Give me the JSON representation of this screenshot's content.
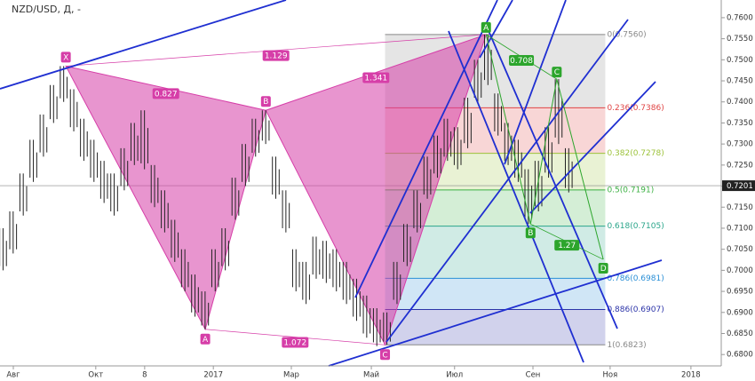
{
  "chart_data": {
    "type": "ohlc",
    "title": "NZD/USD, Д, -",
    "x": [
      -0.25,
      0,
      0.25,
      0.5,
      0.75,
      1,
      1.25,
      1.5,
      1.75,
      2,
      2.25,
      2.5,
      2.75,
      3,
      3.25,
      3.5,
      3.75,
      4,
      4.25,
      4.5,
      4.75,
      5,
      5.25,
      5.5,
      5.75,
      6,
      6.25,
      6.5,
      6.75,
      7,
      7.25,
      7.5,
      7.75,
      8,
      8.25,
      8.5,
      8.75,
      9,
      9.25,
      9.5,
      9.75,
      10,
      10.25,
      10.5,
      10.75,
      11,
      11.25,
      11.5,
      11.75,
      12,
      12.25,
      12.5,
      12.75,
      13,
      13.25,
      13.5,
      13.75
    ],
    "high": [
      0.71,
      0.714,
      0.723,
      0.731,
      0.737,
      0.744,
      0.7485,
      0.743,
      0.736,
      0.731,
      0.726,
      0.723,
      0.729,
      0.735,
      0.738,
      0.725,
      0.719,
      0.712,
      0.705,
      0.699,
      0.695,
      0.705,
      0.71,
      0.722,
      0.73,
      0.736,
      0.738,
      0.727,
      0.719,
      0.705,
      0.702,
      0.708,
      0.707,
      0.705,
      0.702,
      0.698,
      0.694,
      0.691,
      0.69,
      0.702,
      0.711,
      0.719,
      0.727,
      0.732,
      0.736,
      0.734,
      0.741,
      0.75,
      0.756,
      0.742,
      0.735,
      0.731,
      0.724,
      0.726,
      0.734,
      0.7454,
      0.729
    ],
    "low": [
      0.7,
      0.704,
      0.713,
      0.721,
      0.727,
      0.735,
      0.74,
      0.733,
      0.726,
      0.721,
      0.716,
      0.713,
      0.719,
      0.725,
      0.724,
      0.715,
      0.709,
      0.702,
      0.695,
      0.689,
      0.686,
      0.695,
      0.7,
      0.712,
      0.72,
      0.727,
      0.73,
      0.717,
      0.709,
      0.695,
      0.692,
      0.698,
      0.697,
      0.695,
      0.692,
      0.688,
      0.684,
      0.682,
      0.6823,
      0.692,
      0.701,
      0.709,
      0.717,
      0.722,
      0.726,
      0.724,
      0.729,
      0.74,
      0.744,
      0.732,
      0.725,
      0.721,
      0.711,
      0.714,
      0.722,
      0.73,
      0.7185
    ],
    "xlim": [
      -0.33,
      17.52
    ],
    "xticks": [
      {
        "value": 0,
        "label": "Авг"
      },
      {
        "value": 2.04,
        "label": "Окт"
      },
      {
        "value": 3.25,
        "label": "8"
      },
      {
        "value": 4.95,
        "label": "2017"
      },
      {
        "value": 6.88,
        "label": "Мар"
      },
      {
        "value": 8.86,
        "label": "Май"
      },
      {
        "value": 10.92,
        "label": "Июл"
      },
      {
        "value": 12.86,
        "label": "Сен"
      },
      {
        "value": 14.77,
        "label": "Ноя"
      },
      {
        "value": 16.77,
        "label": "2018"
      }
    ],
    "ylim": [
      0.6773,
      0.7642
    ],
    "yticks": [
      {
        "value": 0.68,
        "label": "0.6800"
      },
      {
        "value": 0.685,
        "label": "0.6850"
      },
      {
        "value": 0.69,
        "label": "0.6900"
      },
      {
        "value": 0.695,
        "label": "0.6950"
      },
      {
        "value": 0.7,
        "label": "0.7000"
      },
      {
        "value": 0.705,
        "label": "0.7050"
      },
      {
        "value": 0.71,
        "label": "0.7100"
      },
      {
        "value": 0.715,
        "label": "0.7150"
      },
      {
        "value": 0.72,
        "label": "0.7200"
      },
      {
        "value": 0.725,
        "label": "0.7250"
      },
      {
        "value": 0.73,
        "label": "0.7300"
      },
      {
        "value": 0.735,
        "label": "0.7350"
      },
      {
        "value": 0.74,
        "label": "0.7400"
      },
      {
        "value": 0.745,
        "label": "0.7450"
      },
      {
        "value": 0.75,
        "label": "0.7500"
      },
      {
        "value": 0.755,
        "label": "0.7550"
      },
      {
        "value": 0.76,
        "label": "0.7600"
      }
    ],
    "last_price": {
      "value": 0.7201,
      "label": "0.7201"
    },
    "fib": [
      {
        "label": "0(0.7560)",
        "value": 0.756,
        "color": "#888888"
      },
      {
        "label": "0.236(0.7386)",
        "value": 0.7386,
        "color": "#e04545"
      },
      {
        "label": "0.382(0.7278)",
        "value": 0.7278,
        "color": "#9cc23a"
      },
      {
        "label": "0.5(0.7191)",
        "value": 0.7191,
        "color": "#3cb043"
      },
      {
        "label": "0.618(0.7105)",
        "value": 0.7105,
        "color": "#2aa58a"
      },
      {
        "label": "0.786(0.6981)",
        "value": 0.6981,
        "color": "#2a8fd6"
      },
      {
        "label": "0.886(0.6907)",
        "value": 0.6907,
        "color": "#2c34a8"
      },
      {
        "label": "1(0.6823)",
        "value": 0.6823,
        "color": "#888888"
      }
    ],
    "pattern1": {
      "color": "#d63ea8",
      "points": [
        {
          "label": "X",
          "x": 1.3,
          "y": 0.7485
        },
        {
          "label": "A",
          "x": 4.75,
          "y": 0.686
        },
        {
          "label": "B",
          "x": 6.25,
          "y": 0.738
        },
        {
          "label": "C",
          "x": 9.2,
          "y": 0.6823
        }
      ],
      "end": {
        "x": 11.7,
        "y": 0.756
      },
      "ratios": [
        "1.129",
        "0.827",
        "1.341",
        "1.072"
      ]
    },
    "pattern2": {
      "color": "#2ca52c",
      "points": [
        {
          "label": "A",
          "x": 11.7,
          "y": 0.756
        },
        {
          "label": "B",
          "x": 12.8,
          "y": 0.711
        },
        {
          "label": "C",
          "x": 13.45,
          "y": 0.7454
        },
        {
          "label": "D",
          "x": 14.6,
          "y": 0.7026
        }
      ],
      "ratios": [
        "0.708",
        "1.27"
      ]
    }
  }
}
